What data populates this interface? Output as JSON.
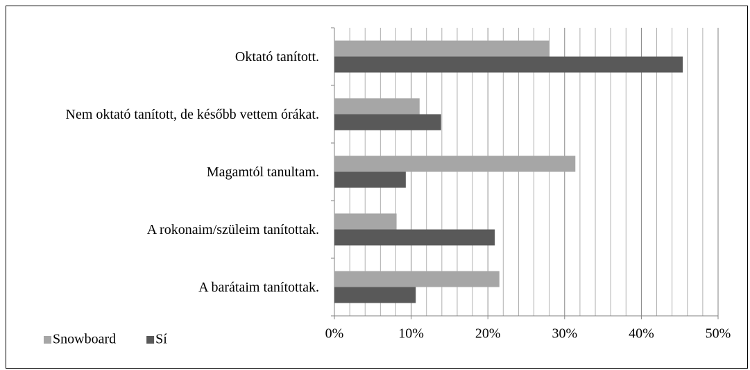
{
  "chart_data": {
    "type": "barh",
    "categories": [
      "Oktató tanított.",
      "Nem oktató tanított, de  később vettem órákat.",
      "Magamtól tanultam.",
      "A rokonaim/szüleim tanítottak.",
      "A barátaim tanítottak."
    ],
    "series": [
      {
        "name": "Snowboard",
        "color": "#a6a6a6",
        "values": [
          28,
          11.1,
          31.4,
          8.1,
          21.5
        ]
      },
      {
        "name": "Sí",
        "color": "#595959",
        "values": [
          45.4,
          13.9,
          9.3,
          20.9,
          10.6
        ]
      }
    ],
    "xlim": [
      0,
      50
    ],
    "xticks": [
      {
        "value": 0,
        "label": "0%"
      },
      {
        "value": 10,
        "label": "10%"
      },
      {
        "value": 20,
        "label": "20%"
      },
      {
        "value": 30,
        "label": "30%"
      },
      {
        "value": 40,
        "label": "40%"
      },
      {
        "value": 50,
        "label": "50%"
      }
    ],
    "xminorticks": [
      2,
      4,
      6,
      8,
      12,
      14,
      16,
      18,
      22,
      24,
      26,
      28,
      32,
      34,
      36,
      38,
      42,
      44,
      46,
      48
    ],
    "grid": true,
    "legend": "bottom-left"
  }
}
